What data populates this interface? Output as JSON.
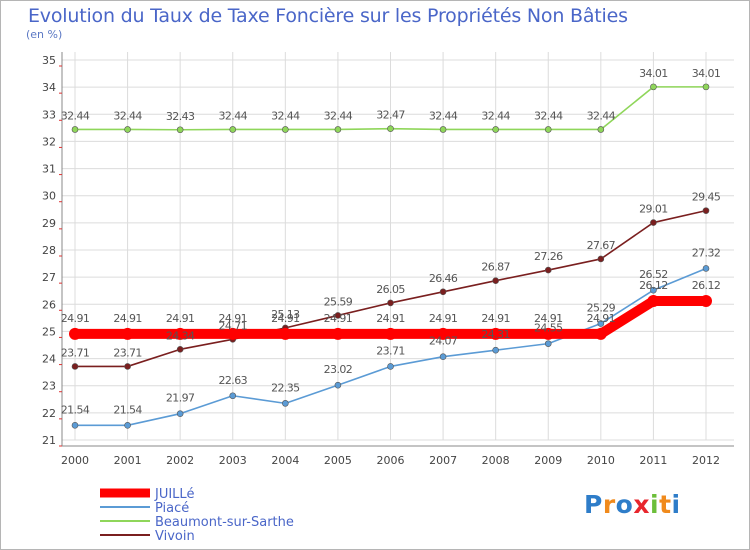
{
  "title": "Evolution du Taux de Taxe Foncière sur les Propriétés Non Bâties",
  "unit_label": "(en %)",
  "logo_text": "Proxiti",
  "colors": {
    "title": "#4a66c8",
    "series_JUILLE": "#ff0000",
    "series_Piace": "#5b9bd5",
    "series_Beaumont": "#8fd65a",
    "series_Vivoin": "#7a1f1f"
  },
  "chart_data": {
    "type": "line",
    "x": [
      2000,
      2001,
      2002,
      2003,
      2004,
      2005,
      2006,
      2007,
      2008,
      2009,
      2010,
      2011,
      2012
    ],
    "ylim": [
      21,
      35
    ],
    "yticks": [
      21,
      22,
      23,
      24,
      25,
      26,
      27,
      28,
      29,
      30,
      31,
      32,
      33,
      34,
      35
    ],
    "grid": true,
    "legend_position": "bottom-left",
    "series": [
      {
        "name": "JUILLé",
        "color": "#ff0000",
        "values": [
          24.91,
          24.91,
          24.91,
          24.91,
          24.91,
          24.91,
          24.91,
          24.91,
          24.91,
          24.91,
          24.91,
          26.12,
          26.12
        ],
        "labels": [
          "24.91",
          "24.91",
          "24.91",
          "24.91",
          "24.91",
          "24.91",
          "24.91",
          "24.91",
          "24.91",
          "24.91",
          "24.91",
          "26.12",
          "26.12"
        ]
      },
      {
        "name": "Piacé",
        "color": "#5b9bd5",
        "values": [
          21.54,
          21.54,
          21.97,
          22.63,
          22.35,
          23.02,
          23.71,
          24.07,
          24.31,
          24.55,
          25.29,
          26.52,
          27.32
        ],
        "labels": [
          "21.54",
          "21.54",
          "21.97",
          "22.63",
          "22.35",
          "23.02",
          "23.71",
          "24.07",
          "24.31",
          "24.55",
          "25.29",
          "26.52",
          "27.32"
        ]
      },
      {
        "name": "Beaumont-sur-Sarthe",
        "color": "#8fd65a",
        "values": [
          32.44,
          32.44,
          32.43,
          32.44,
          32.44,
          32.44,
          32.47,
          32.44,
          32.44,
          32.44,
          32.44,
          34.01,
          34.01
        ],
        "labels": [
          "32.44",
          "32.44",
          "32.43",
          "32.44",
          "32.44",
          "32.44",
          "32.47",
          "32.44",
          "32.44",
          "32.44",
          "32.44",
          "34.01",
          "34.01"
        ]
      },
      {
        "name": "Vivoin",
        "color": "#7a1f1f",
        "values": [
          23.71,
          23.71,
          24.34,
          24.71,
          25.13,
          25.59,
          26.05,
          26.46,
          26.87,
          27.26,
          27.67,
          29.01,
          29.45
        ],
        "labels": [
          "23.71",
          "23.71",
          "24.34",
          "24.71",
          "25.13",
          "25.59",
          "26.05",
          "26.46",
          "26.87",
          "27.26",
          "27.67",
          "29.01",
          "29.45"
        ]
      }
    ]
  }
}
